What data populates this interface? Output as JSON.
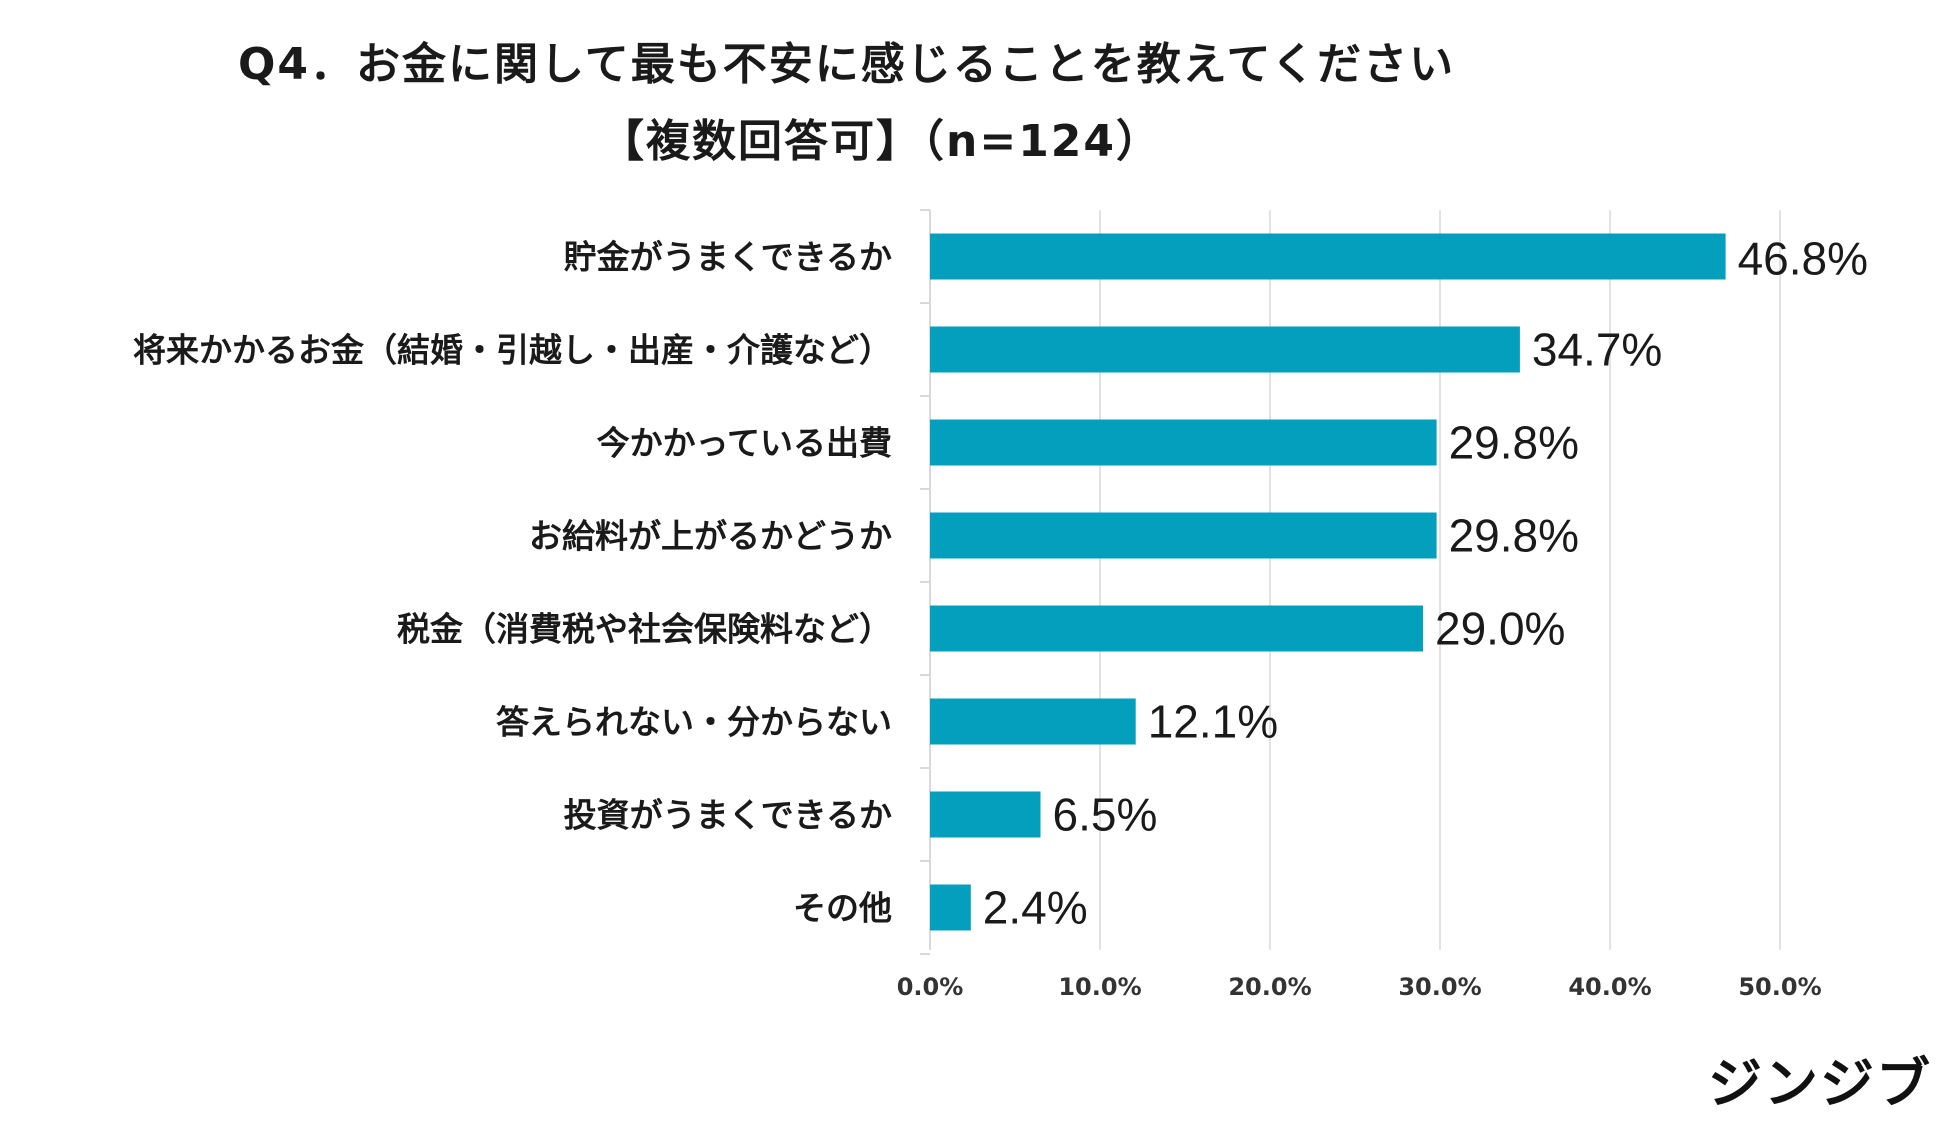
{
  "title": {
    "line1": "Q4．お金に関して最も不安に感じることを教えてください",
    "line2": "【複数回答可】（n=124）"
  },
  "logo": "ジンジブ",
  "colors": {
    "bar": "#039fbd",
    "grid": "#d9d9d9",
    "text": "#1a1a1a"
  },
  "chart_data": {
    "type": "bar",
    "orientation": "horizontal",
    "title": "Q4．お金に関して最も不安に感じることを教えてください【複数回答可】（n=124）",
    "categories": [
      "貯金がうまくできるか",
      "将来かかるお金（結婚・引越し・出産・介護など）",
      "今かかっている出費",
      "お給料が上がるかどうか",
      "税金（消費税や社会保険料など）",
      "答えられない・分からない",
      "投資がうまくできるか",
      "その他"
    ],
    "values": [
      46.8,
      34.7,
      29.8,
      29.8,
      29.0,
      12.1,
      6.5,
      2.4
    ],
    "value_labels": [
      "46.8%",
      "34.7%",
      "29.8%",
      "29.8%",
      "29.0%",
      "12.1%",
      "6.5%",
      "2.4%"
    ],
    "xlim": [
      0,
      50
    ],
    "x_ticks": [
      "0.0%",
      "10.0%",
      "20.0%",
      "30.0%",
      "40.0%",
      "50.0%"
    ],
    "grid": true,
    "legend": "none"
  }
}
